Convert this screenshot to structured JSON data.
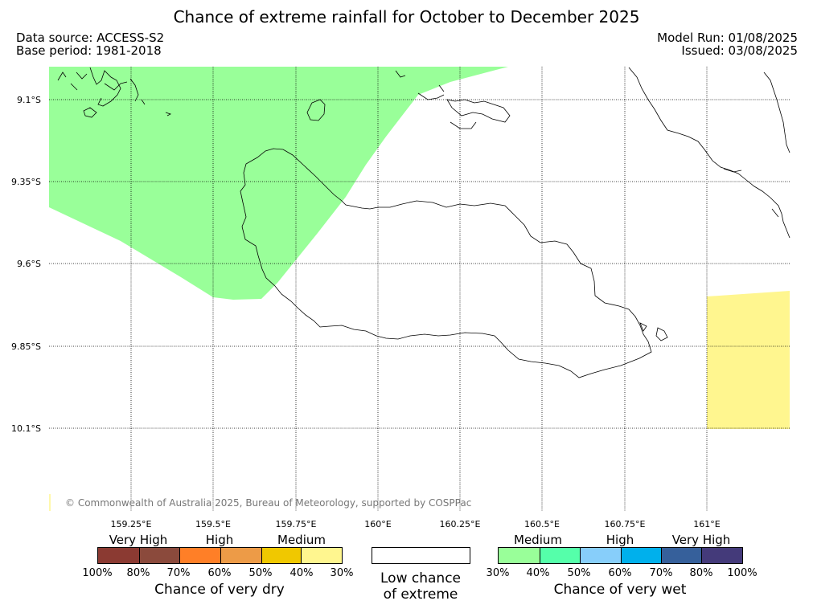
{
  "title": "Chance of extreme rainfall for October to December 2025",
  "data_source": "Data source: ACCESS-S2",
  "base_period": "Base period: 1981-2018",
  "model_run": "Model Run: 01/08/2025",
  "issued": "Issued: 03/08/2025",
  "copyright": "© Commonwealth of Australia 2025, Bureau of Meteorology, supported by COSPPac",
  "lat_labels": [
    "9.1°S",
    "9.35°S",
    "9.6°S",
    "9.85°S",
    "10.1°S"
  ],
  "lon_labels": [
    "159.25°E",
    "159.5°E",
    "159.75°E",
    "160°E",
    "160.25°E",
    "160.5°E",
    "160.75°E",
    "161°E"
  ],
  "colors": {
    "wet_30_40": "#99ff99",
    "dry_30_40": "#fff68f"
  },
  "legend": {
    "dry": {
      "categories": [
        "Very High",
        "High",
        "Medium"
      ],
      "colors": [
        "#8b3a32",
        "#8b4a3c",
        "#ff7f27",
        "#ed9b47",
        "#f0c800",
        "#fff68f"
      ],
      "ticks": [
        "100%",
        "80%",
        "70%",
        "60%",
        "50%",
        "40%",
        "30%"
      ],
      "caption": "Chance of very dry"
    },
    "low": {
      "caption_line1": "Low chance",
      "caption_line2": "of extreme"
    },
    "wet": {
      "categories": [
        "Medium",
        "High",
        "Very High"
      ],
      "colors": [
        "#99ff99",
        "#55ffaa",
        "#87cefa",
        "#00b0ec",
        "#36609b",
        "#443a7a"
      ],
      "ticks": [
        "30%",
        "40%",
        "50%",
        "60%",
        "70%",
        "80%",
        "100%"
      ],
      "caption": "Chance of very wet"
    }
  }
}
